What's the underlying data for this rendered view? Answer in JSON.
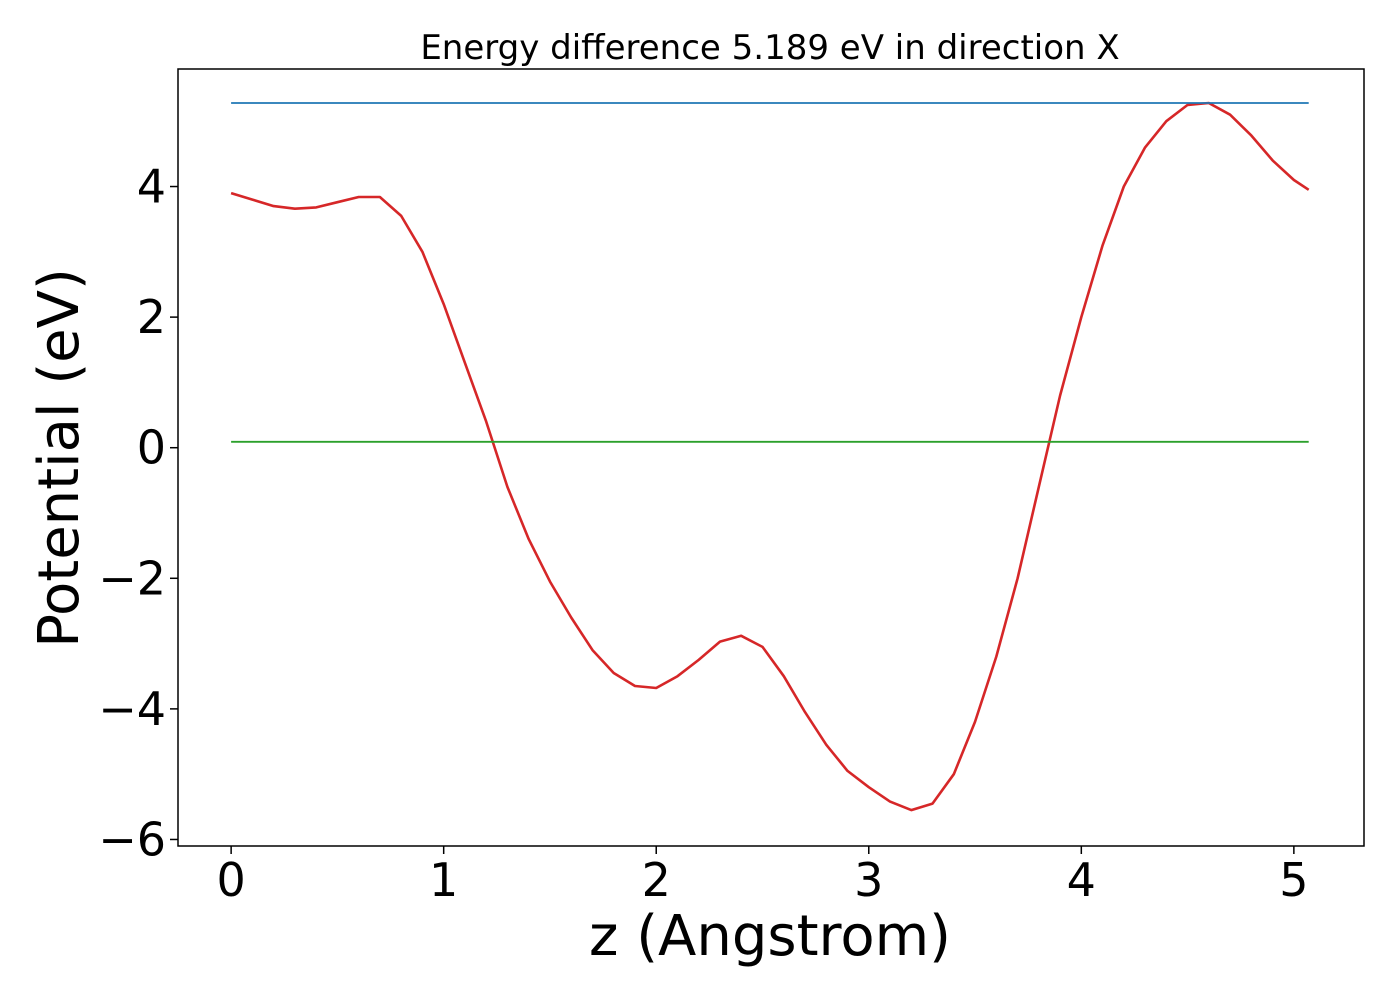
{
  "chart_data": {
    "type": "line",
    "title": "Energy difference 5.189 eV in direction X",
    "xlabel": "z (Angstrom)",
    "ylabel": "Potential (eV)",
    "xlim": [
      -0.25,
      5.33
    ],
    "ylim": [
      -6.1,
      5.8
    ],
    "xticks": [
      0,
      1,
      2,
      3,
      4,
      5
    ],
    "xtick_labels": [
      "0",
      "1",
      "2",
      "3",
      "4",
      "5"
    ],
    "yticks": [
      -6,
      -4,
      -2,
      0,
      2,
      4
    ],
    "ytick_labels": [
      "−6",
      "−4",
      "−2",
      "0",
      "2",
      "4"
    ],
    "grid": false,
    "series": [
      {
        "color": "#d62728",
        "x": [
          0,
          0.1,
          0.2,
          0.3,
          0.4,
          0.5,
          0.6,
          0.7,
          0.8,
          0.9,
          1.0,
          1.1,
          1.2,
          1.3,
          1.4,
          1.5,
          1.6,
          1.7,
          1.8,
          1.9,
          2.0,
          2.1,
          2.2,
          2.3,
          2.4,
          2.5,
          2.6,
          2.7,
          2.8,
          2.9,
          3.0,
          3.1,
          3.2,
          3.3,
          3.4,
          3.5,
          3.6,
          3.7,
          3.8,
          3.9,
          4.0,
          4.1,
          4.2,
          4.3,
          4.4,
          4.5,
          4.6,
          4.7,
          4.8,
          4.9,
          5.0,
          5.07
        ],
        "y": [
          3.9,
          3.8,
          3.7,
          3.66,
          3.68,
          3.76,
          3.84,
          3.84,
          3.55,
          3.0,
          2.2,
          1.3,
          0.4,
          -0.6,
          -1.4,
          -2.05,
          -2.6,
          -3.1,
          -3.45,
          -3.65,
          -3.68,
          -3.5,
          -3.25,
          -2.97,
          -2.88,
          -3.05,
          -3.5,
          -4.05,
          -4.55,
          -4.95,
          -5.2,
          -5.42,
          -5.55,
          -5.45,
          -5.0,
          -4.2,
          -3.2,
          -2.0,
          -0.6,
          0.8,
          2.0,
          3.1,
          4.0,
          4.6,
          5.0,
          5.25,
          5.28,
          5.1,
          4.78,
          4.4,
          4.1,
          3.95
        ]
      },
      {
        "color": "#1f77b4",
        "x": [
          0,
          5.07
        ],
        "y": [
          5.28,
          5.28
        ]
      },
      {
        "color": "#2ca02c",
        "x": [
          0,
          5.07
        ],
        "y": [
          0.09,
          0.09
        ]
      }
    ]
  }
}
